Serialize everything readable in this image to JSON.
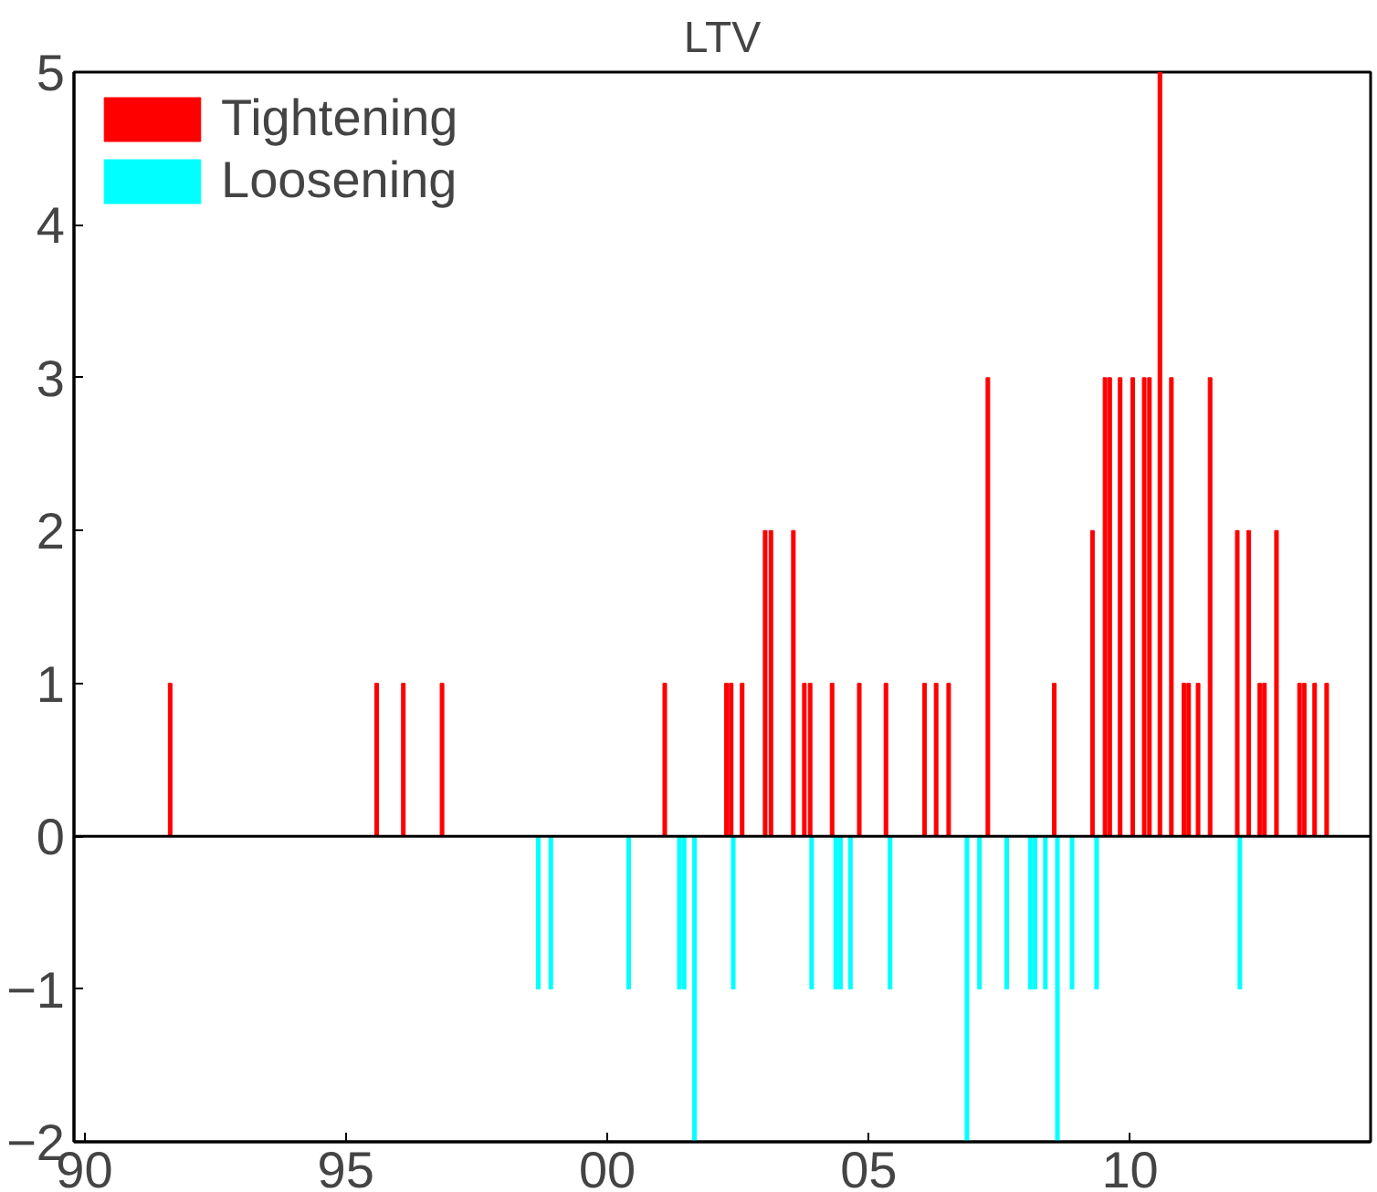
{
  "chart_data": {
    "type": "bar",
    "title": "LTV",
    "xlim": [
      1989.8,
      2014.6
    ],
    "xticks": [
      {
        "value": 1990,
        "label": "90"
      },
      {
        "value": 1995,
        "label": "95"
      },
      {
        "value": 2000,
        "label": "00"
      },
      {
        "value": 2005,
        "label": "05"
      },
      {
        "value": 2010,
        "label": "10"
      }
    ],
    "ylim": [
      -2,
      5
    ],
    "yticks": [
      -2,
      -1,
      0,
      1,
      2,
      3,
      4,
      5
    ],
    "grid": false,
    "legend": "top left",
    "ref_lines": [
      {
        "axis": "y",
        "value": 0,
        "color": "#000000"
      }
    ],
    "series": [
      {
        "name": "Tightening",
        "color": "#ff0000",
        "x": [
          1991.64,
          1995.59,
          1996.1,
          1996.84,
          2001.1,
          2002.28,
          2002.37,
          2002.58,
          2003.02,
          2003.13,
          2003.56,
          2003.77,
          2003.88,
          2004.3,
          2004.82,
          2005.33,
          2006.07,
          2006.29,
          2006.53,
          2007.28,
          2008.55,
          2009.28,
          2009.52,
          2009.61,
          2009.81,
          2010.05,
          2010.27,
          2010.37,
          2010.57,
          2010.79,
          2011.03,
          2011.12,
          2011.3,
          2011.53,
          2012.05,
          2012.27,
          2012.48,
          2012.57,
          2012.8,
          2013.24,
          2013.33,
          2013.53,
          2013.76
        ],
        "values": [
          1,
          1,
          1,
          1,
          1,
          1,
          1,
          1,
          2,
          2,
          2,
          1,
          1,
          1,
          1,
          1,
          1,
          1,
          1,
          3,
          1,
          2,
          3,
          3,
          3,
          3,
          3,
          3,
          5,
          3,
          1,
          1,
          1,
          3,
          2,
          2,
          1,
          1,
          2,
          1,
          1,
          1,
          1
        ]
      },
      {
        "name": "Loosening",
        "color": "#00ffff",
        "x": [
          1998.68,
          1998.92,
          2000.41,
          2001.38,
          2001.47,
          2001.67,
          2002.41,
          2003.91,
          2004.37,
          2004.46,
          2004.65,
          2005.41,
          2006.88,
          2007.12,
          2007.64,
          2008.09,
          2008.18,
          2008.38,
          2008.61,
          2008.89,
          2009.36,
          2012.1
        ],
        "values": [
          -1,
          -1,
          -1,
          -1,
          -1,
          -2,
          -1,
          -1,
          -1,
          -1,
          -1,
          -1,
          -2,
          -1,
          -1,
          -1,
          -1,
          -1,
          -2,
          -1,
          -1,
          -1
        ]
      }
    ]
  }
}
